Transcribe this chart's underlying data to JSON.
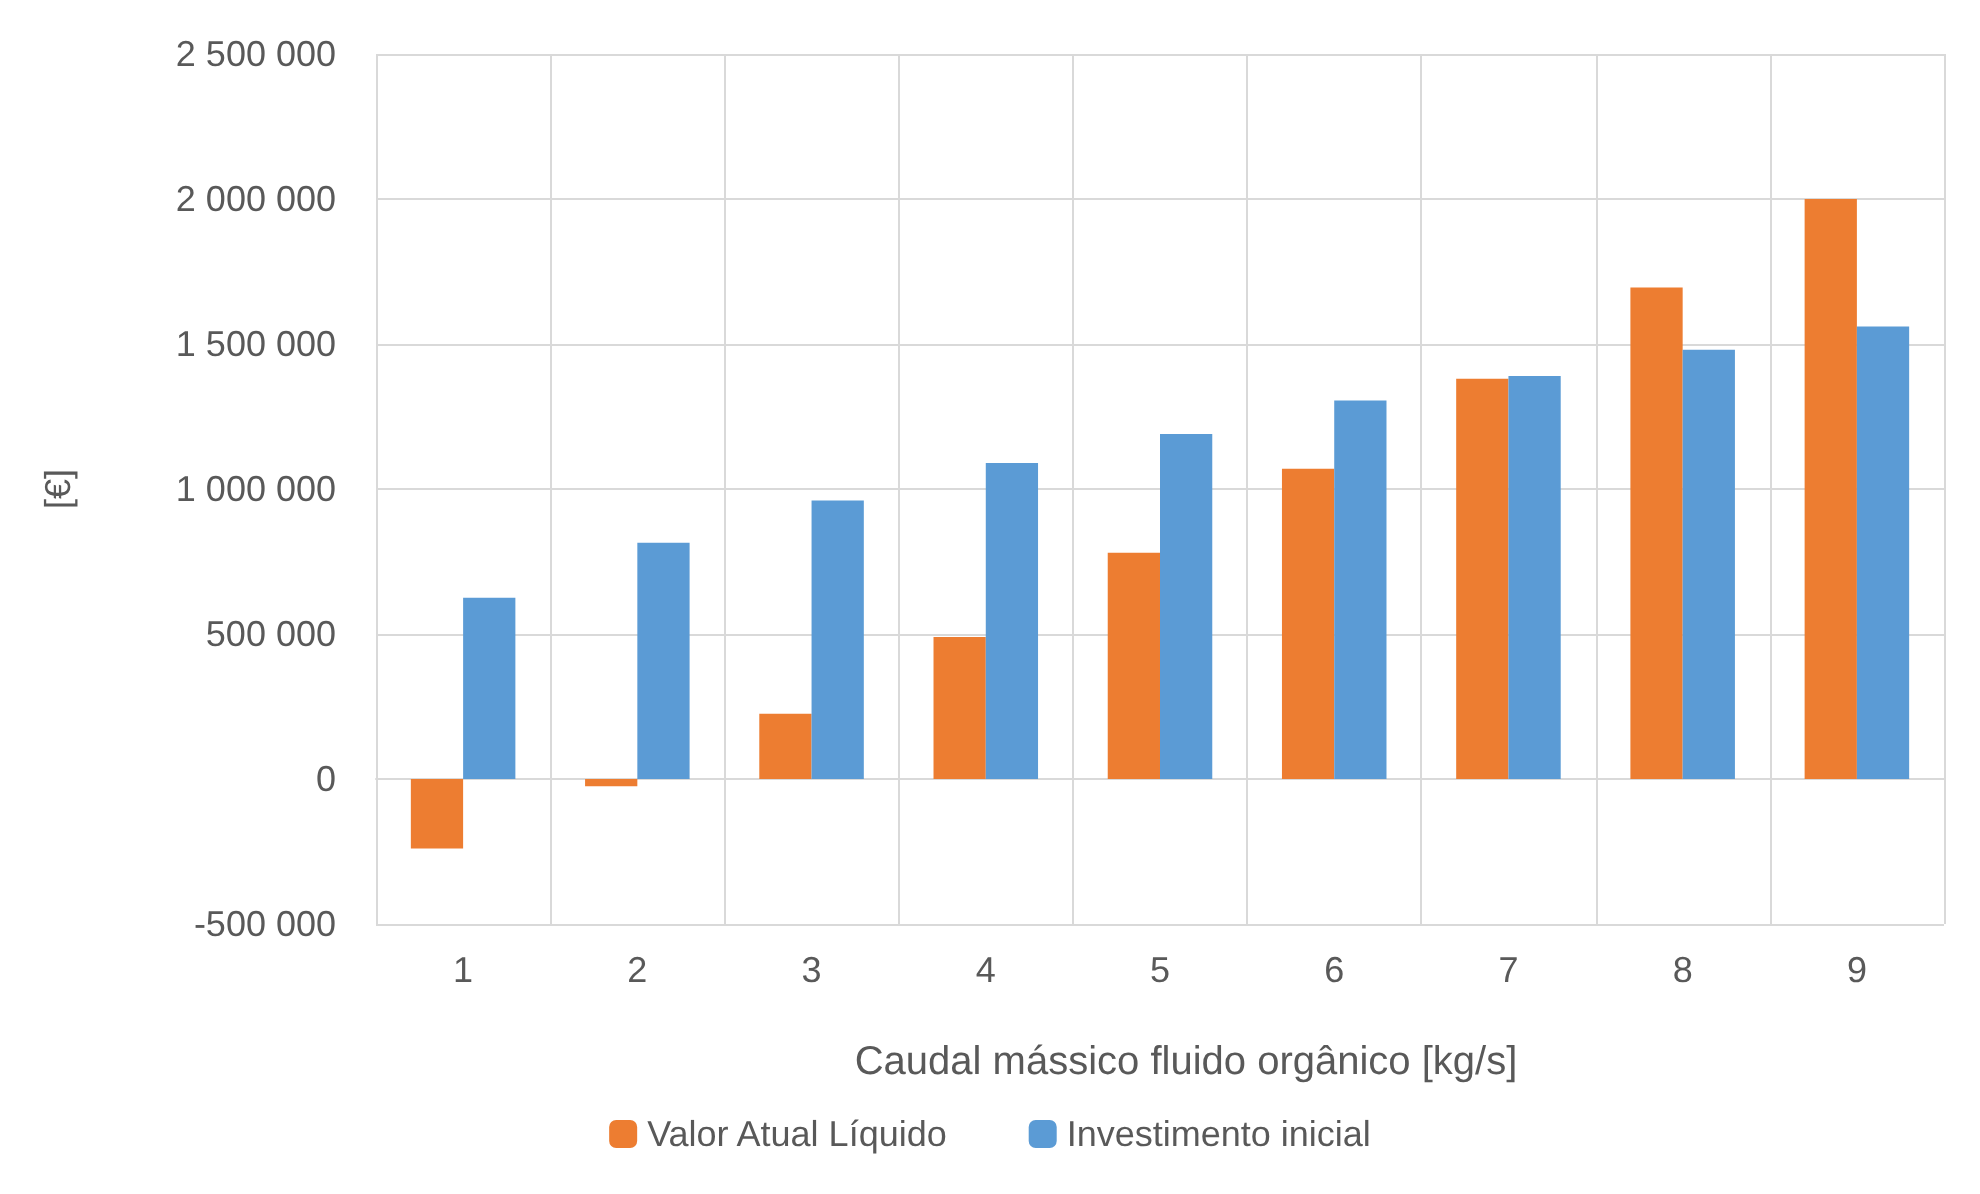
{
  "chart_data": {
    "type": "bar",
    "xlabel": "Caudal mássico fluido orgânico [kg/s]",
    "ylabel": "[€]",
    "categories": [
      "1",
      "2",
      "3",
      "4",
      "5",
      "6",
      "7",
      "8",
      "9"
    ],
    "series": [
      {
        "name": "Valor Atual Líquido",
        "color": "#ed7d31",
        "values": [
          -240000,
          -25000,
          225000,
          490000,
          780000,
          1070000,
          1380000,
          1695000,
          2000000
        ]
      },
      {
        "name": "Investimento inicial",
        "color": "#5b9bd5",
        "values": [
          625000,
          815000,
          960000,
          1090000,
          1190000,
          1305000,
          1390000,
          1480000,
          1560000
        ]
      }
    ],
    "ylim": [
      -500000,
      2500000
    ],
    "yticks": [
      {
        "value": -500000,
        "label": "-500 000"
      },
      {
        "value": 0,
        "label": "0"
      },
      {
        "value": 500000,
        "label": "500 000"
      },
      {
        "value": 1000000,
        "label": "1 000 000"
      },
      {
        "value": 1500000,
        "label": "1 500 000"
      },
      {
        "value": 2000000,
        "label": "2 000 000"
      },
      {
        "value": 2500000,
        "label": "2 500 000"
      }
    ],
    "grid": true,
    "legend": "bottom"
  }
}
